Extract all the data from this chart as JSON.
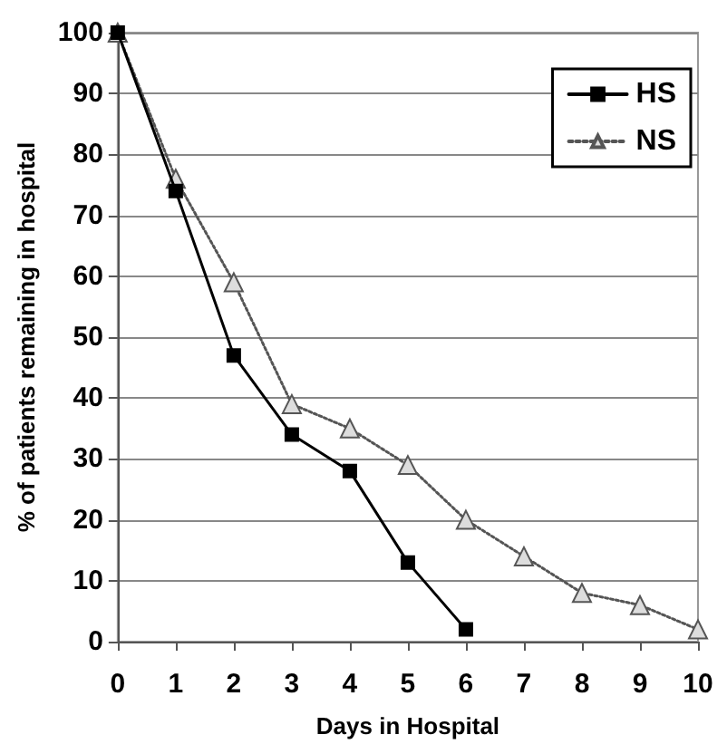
{
  "chart_data": {
    "type": "line",
    "xlabel": "Days in Hospital",
    "ylabel": "% of patients remaining in hospital",
    "x": [
      0,
      1,
      2,
      3,
      4,
      5,
      6,
      7,
      8,
      9,
      10
    ],
    "series": [
      {
        "name": "HS",
        "color": "#000000",
        "marker": "square",
        "line_style": "solid",
        "x": [
          0,
          1,
          2,
          3,
          4,
          5,
          6
        ],
        "values": [
          100,
          74,
          47,
          34,
          28,
          13,
          2
        ]
      },
      {
        "name": "NS",
        "color": "#555555",
        "marker": "triangle",
        "line_style": "dotted",
        "values": [
          100,
          76,
          59,
          39,
          35,
          29,
          20,
          14,
          8,
          6,
          2
        ]
      }
    ],
    "xlim": [
      0,
      10
    ],
    "xticks": [
      0,
      1,
      2,
      3,
      4,
      5,
      6,
      7,
      8,
      9,
      10
    ],
    "ylim": [
      0,
      100
    ],
    "yticks": [
      0,
      10,
      20,
      30,
      40,
      50,
      60,
      70,
      80,
      90,
      100
    ],
    "grid": "y",
    "legend": "top right"
  }
}
